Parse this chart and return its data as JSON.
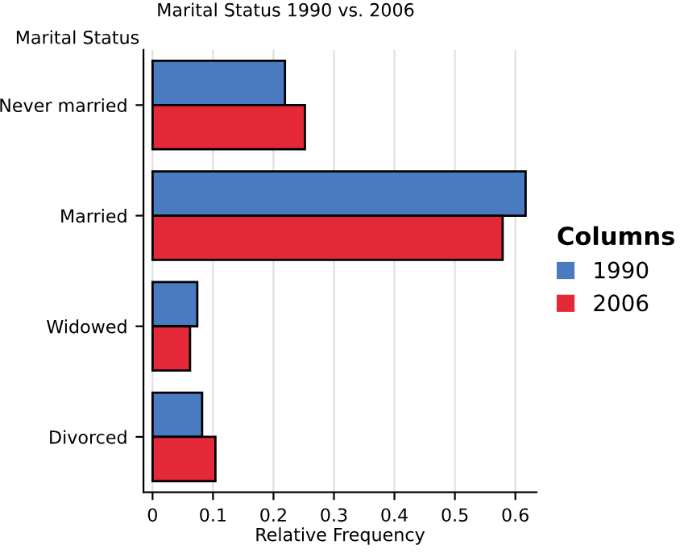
{
  "chart_data": {
    "type": "bar",
    "orientation": "horizontal",
    "title": "Marital Status 1990 vs. 2006",
    "ylabel": "Marital Status",
    "xlabel": "Relative Frequency",
    "categories": [
      "Never married",
      "Married",
      "Widowed",
      "Divorced"
    ],
    "series": [
      {
        "name": "1990",
        "color": "#4a7bc0",
        "values": [
          0.219,
          0.617,
          0.074,
          0.082
        ]
      },
      {
        "name": "2006",
        "color": "#e32938",
        "values": [
          0.252,
          0.579,
          0.062,
          0.104
        ]
      }
    ],
    "xlim": [
      -0.015,
      0.635
    ],
    "xticks": [
      0,
      0.1,
      0.2,
      0.3,
      0.4,
      0.5,
      0.6
    ],
    "grid": "x",
    "legend": "right",
    "legend_title": "Columns"
  }
}
